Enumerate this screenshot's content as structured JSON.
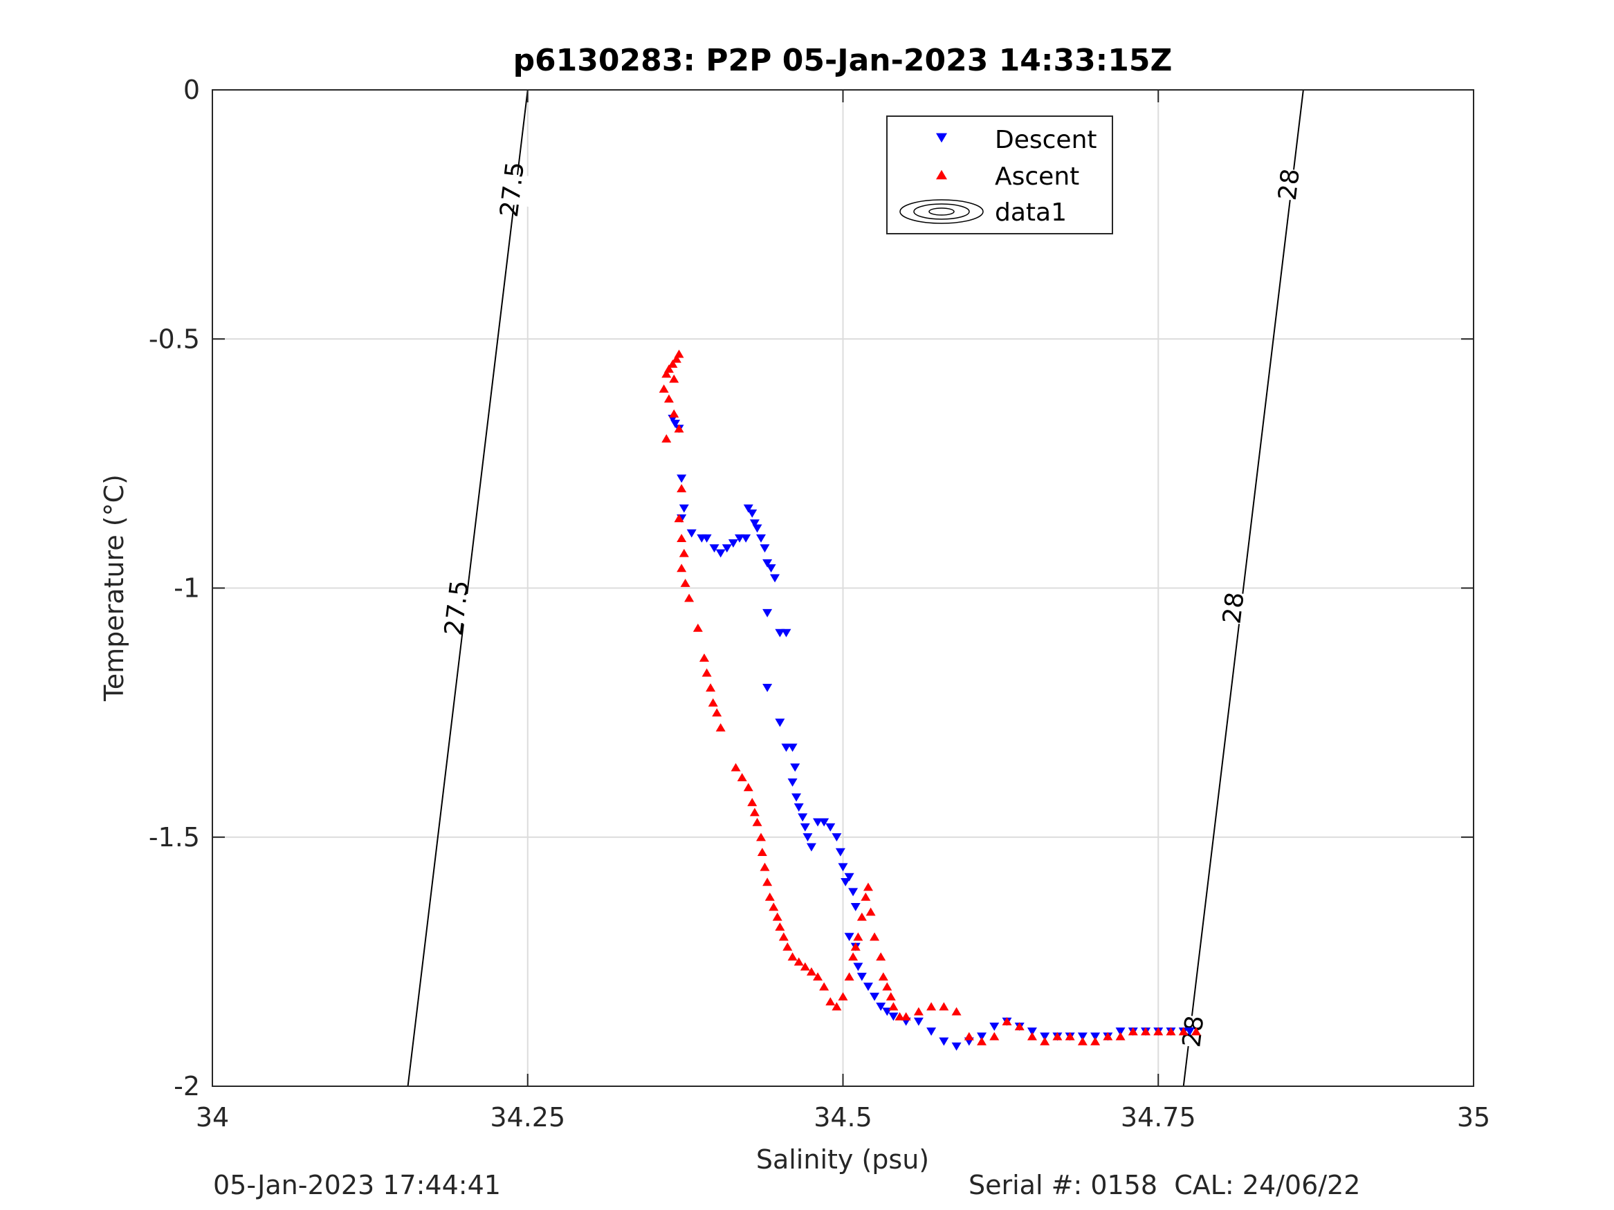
{
  "footer": {
    "left": "05-Jan-2023 17:44:41",
    "right": "Serial #: 0158  CAL: 24/06/22"
  },
  "chart_data": {
    "type": "scatter",
    "title": "p6130283: P2P 05-Jan-2023 14:33:15Z",
    "xlabel": "Salinity (psu)",
    "ylabel": "Temperature (°C)",
    "xlim": [
      34,
      35
    ],
    "ylim": [
      -2,
      0
    ],
    "xticks": [
      34,
      34.25,
      34.5,
      34.75,
      35
    ],
    "xtick_labels": [
      "34",
      "34.25",
      "34.5",
      "34.75",
      "35"
    ],
    "yticks": [
      0,
      -0.5,
      -1,
      -1.5,
      -2
    ],
    "ytick_labels": [
      "0",
      "-0.5",
      "-1",
      "-1.5",
      "-2"
    ],
    "grid": true,
    "legend_position": "top-center",
    "colors": {
      "descent": "#0000ff",
      "ascent": "#ff0000",
      "contour": "#000000",
      "grid": "#dcdcdc"
    },
    "series": [
      {
        "name": "Descent",
        "marker": "triangle-down",
        "color": "#0000ff",
        "points": [
          [
            34.365,
            -0.66
          ],
          [
            34.367,
            -0.67
          ],
          [
            34.37,
            -0.68
          ],
          [
            34.372,
            -0.78
          ],
          [
            34.374,
            -0.84
          ],
          [
            34.372,
            -0.86
          ],
          [
            34.38,
            -0.89
          ],
          [
            34.388,
            -0.9
          ],
          [
            34.392,
            -0.9
          ],
          [
            34.398,
            -0.92
          ],
          [
            34.403,
            -0.93
          ],
          [
            34.408,
            -0.92
          ],
          [
            34.413,
            -0.91
          ],
          [
            34.418,
            -0.9
          ],
          [
            34.423,
            -0.9
          ],
          [
            34.425,
            -0.84
          ],
          [
            34.428,
            -0.85
          ],
          [
            34.43,
            -0.87
          ],
          [
            34.432,
            -0.88
          ],
          [
            34.435,
            -0.9
          ],
          [
            34.438,
            -0.92
          ],
          [
            34.44,
            -0.95
          ],
          [
            34.443,
            -0.96
          ],
          [
            34.446,
            -0.98
          ],
          [
            34.44,
            -1.05
          ],
          [
            34.45,
            -1.09
          ],
          [
            34.455,
            -1.09
          ],
          [
            34.44,
            -1.2
          ],
          [
            34.45,
            -1.27
          ],
          [
            34.455,
            -1.32
          ],
          [
            34.46,
            -1.32
          ],
          [
            34.462,
            -1.36
          ],
          [
            34.46,
            -1.39
          ],
          [
            34.463,
            -1.42
          ],
          [
            34.465,
            -1.44
          ],
          [
            34.468,
            -1.46
          ],
          [
            34.47,
            -1.48
          ],
          [
            34.472,
            -1.5
          ],
          [
            34.475,
            -1.52
          ],
          [
            34.48,
            -1.47
          ],
          [
            34.485,
            -1.47
          ],
          [
            34.49,
            -1.48
          ],
          [
            34.495,
            -1.5
          ],
          [
            34.498,
            -1.53
          ],
          [
            34.5,
            -1.56
          ],
          [
            34.502,
            -1.59
          ],
          [
            34.505,
            -1.58
          ],
          [
            34.508,
            -1.61
          ],
          [
            34.51,
            -1.64
          ],
          [
            34.505,
            -1.7
          ],
          [
            34.51,
            -1.72
          ],
          [
            34.512,
            -1.76
          ],
          [
            34.515,
            -1.78
          ],
          [
            34.52,
            -1.8
          ],
          [
            34.525,
            -1.82
          ],
          [
            34.53,
            -1.84
          ],
          [
            34.535,
            -1.85
          ],
          [
            34.54,
            -1.86
          ],
          [
            34.55,
            -1.87
          ],
          [
            34.56,
            -1.87
          ],
          [
            34.57,
            -1.89
          ],
          [
            34.58,
            -1.91
          ],
          [
            34.59,
            -1.92
          ],
          [
            34.6,
            -1.91
          ],
          [
            34.61,
            -1.9
          ],
          [
            34.62,
            -1.88
          ],
          [
            34.63,
            -1.87
          ],
          [
            34.64,
            -1.88
          ],
          [
            34.65,
            -1.89
          ],
          [
            34.66,
            -1.9
          ],
          [
            34.67,
            -1.9
          ],
          [
            34.68,
            -1.9
          ],
          [
            34.69,
            -1.9
          ],
          [
            34.7,
            -1.9
          ],
          [
            34.71,
            -1.9
          ],
          [
            34.72,
            -1.89
          ],
          [
            34.73,
            -1.89
          ],
          [
            34.74,
            -1.89
          ],
          [
            34.75,
            -1.89
          ],
          [
            34.76,
            -1.89
          ],
          [
            34.77,
            -1.89
          ],
          [
            34.775,
            -1.89
          ]
        ]
      },
      {
        "name": "Ascent",
        "marker": "triangle-up",
        "color": "#ff0000",
        "points": [
          [
            34.37,
            -0.53
          ],
          [
            34.368,
            -0.54
          ],
          [
            34.365,
            -0.55
          ],
          [
            34.362,
            -0.56
          ],
          [
            34.36,
            -0.57
          ],
          [
            34.366,
            -0.58
          ],
          [
            34.358,
            -0.6
          ],
          [
            34.362,
            -0.62
          ],
          [
            34.366,
            -0.65
          ],
          [
            34.37,
            -0.68
          ],
          [
            34.36,
            -0.7
          ],
          [
            34.372,
            -0.8
          ],
          [
            34.37,
            -0.86
          ],
          [
            34.372,
            -0.9
          ],
          [
            34.374,
            -0.93
          ],
          [
            34.372,
            -0.96
          ],
          [
            34.375,
            -0.99
          ],
          [
            34.378,
            -1.02
          ],
          [
            34.385,
            -1.08
          ],
          [
            34.39,
            -1.14
          ],
          [
            34.392,
            -1.17
          ],
          [
            34.395,
            -1.2
          ],
          [
            34.397,
            -1.23
          ],
          [
            34.4,
            -1.25
          ],
          [
            34.403,
            -1.28
          ],
          [
            34.415,
            -1.36
          ],
          [
            34.42,
            -1.38
          ],
          [
            34.425,
            -1.4
          ],
          [
            34.428,
            -1.43
          ],
          [
            34.43,
            -1.45
          ],
          [
            34.432,
            -1.47
          ],
          [
            34.435,
            -1.5
          ],
          [
            34.436,
            -1.53
          ],
          [
            34.438,
            -1.56
          ],
          [
            34.44,
            -1.59
          ],
          [
            34.442,
            -1.62
          ],
          [
            34.445,
            -1.64
          ],
          [
            34.448,
            -1.66
          ],
          [
            34.45,
            -1.68
          ],
          [
            34.453,
            -1.7
          ],
          [
            34.456,
            -1.72
          ],
          [
            34.46,
            -1.74
          ],
          [
            34.465,
            -1.75
          ],
          [
            34.47,
            -1.76
          ],
          [
            34.475,
            -1.77
          ],
          [
            34.48,
            -1.78
          ],
          [
            34.485,
            -1.8
          ],
          [
            34.49,
            -1.83
          ],
          [
            34.495,
            -1.84
          ],
          [
            34.5,
            -1.82
          ],
          [
            34.505,
            -1.78
          ],
          [
            34.508,
            -1.74
          ],
          [
            34.51,
            -1.72
          ],
          [
            34.512,
            -1.7
          ],
          [
            34.515,
            -1.66
          ],
          [
            34.518,
            -1.62
          ],
          [
            34.52,
            -1.6
          ],
          [
            34.522,
            -1.65
          ],
          [
            34.525,
            -1.7
          ],
          [
            34.53,
            -1.74
          ],
          [
            34.532,
            -1.78
          ],
          [
            34.535,
            -1.8
          ],
          [
            34.538,
            -1.82
          ],
          [
            34.54,
            -1.84
          ],
          [
            34.545,
            -1.86
          ],
          [
            34.55,
            -1.86
          ],
          [
            34.56,
            -1.85
          ],
          [
            34.57,
            -1.84
          ],
          [
            34.58,
            -1.84
          ],
          [
            34.59,
            -1.85
          ],
          [
            34.6,
            -1.9
          ],
          [
            34.61,
            -1.91
          ],
          [
            34.62,
            -1.9
          ],
          [
            34.63,
            -1.87
          ],
          [
            34.64,
            -1.88
          ],
          [
            34.65,
            -1.9
          ],
          [
            34.66,
            -1.91
          ],
          [
            34.67,
            -1.9
          ],
          [
            34.68,
            -1.9
          ],
          [
            34.69,
            -1.91
          ],
          [
            34.7,
            -1.91
          ],
          [
            34.71,
            -1.9
          ],
          [
            34.72,
            -1.9
          ],
          [
            34.73,
            -1.89
          ],
          [
            34.74,
            -1.89
          ],
          [
            34.75,
            -1.89
          ],
          [
            34.76,
            -1.89
          ],
          [
            34.77,
            -1.89
          ],
          [
            34.78,
            -1.89
          ]
        ]
      }
    ],
    "contours": [
      {
        "level": "27.5",
        "line": [
          [
            34.155,
            -2
          ],
          [
            34.25,
            0
          ]
        ],
        "labels": [
          [
            34.194,
            -1.04
          ],
          [
            34.238,
            -0.2
          ]
        ]
      },
      {
        "level": "28",
        "line": [
          [
            34.77,
            -2
          ],
          [
            34.865,
            0
          ]
        ],
        "labels": [
          [
            34.778,
            -1.89
          ],
          [
            34.81,
            -1.04
          ],
          [
            34.854,
            -0.19
          ]
        ]
      }
    ],
    "legend_entries": [
      "Descent",
      "Ascent",
      "data1"
    ]
  }
}
